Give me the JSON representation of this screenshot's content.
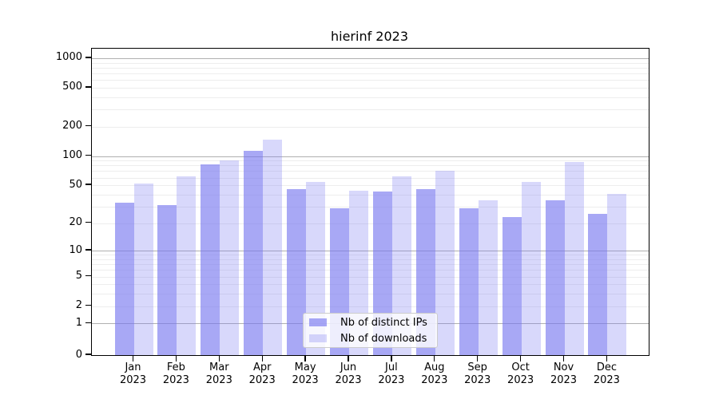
{
  "title": "hierinf 2023",
  "legend": {
    "items": [
      {
        "label": "Nb of distinct IPs",
        "color": "rgba(119,119,240,0.64)"
      },
      {
        "label": "Nb of downloads",
        "color": "rgba(119,119,240,0.29)"
      }
    ],
    "position": "lower center"
  },
  "colors": {
    "bar_dark_on_white": "#a8a8f3",
    "bar_light_on_white": "#d8d8f6",
    "grid_minor": "#ededed",
    "grid_major": "#b0b0b0",
    "axis": "#000000",
    "background": "#ffffff"
  },
  "chart_data": {
    "type": "bar",
    "title": "hierinf 2023",
    "categories": [
      "Jan 2023",
      "Feb 2023",
      "Mar 2023",
      "Apr 2023",
      "May 2023",
      "Jun 2023",
      "Jul 2023",
      "Aug 2023",
      "Sep 2023",
      "Oct 2023",
      "Nov 2023",
      "Dec 2023"
    ],
    "x_tick_line2": "2023",
    "series": [
      {
        "name": "Nb of distinct IPs",
        "color": "rgba(119,119,240,0.64)",
        "values": [
          33,
          31,
          82,
          114,
          46,
          29,
          43,
          46,
          29,
          23,
          35,
          25
        ]
      },
      {
        "name": "Nb of downloads",
        "color": "rgba(119,119,240,0.29)",
        "values": [
          52,
          62,
          91,
          147,
          54,
          44,
          62,
          70,
          35,
          54,
          87,
          41
        ]
      }
    ],
    "xlabel": "",
    "ylabel": "",
    "yscale": "symlog (log10 of 1+value)",
    "y_ticks": [
      0,
      1,
      2,
      5,
      10,
      20,
      50,
      100,
      200,
      500,
      1000
    ],
    "y_major_gridlines": [
      1,
      10,
      100,
      1000
    ],
    "ylim": [
      0,
      1250
    ],
    "grid": true,
    "legend_position": "lower center"
  }
}
